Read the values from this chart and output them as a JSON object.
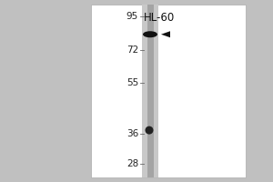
{
  "bg_color": "#f0f0f0",
  "white_bg": "#ffffff",
  "lane_color": "#c8c8c8",
  "lane_stripe_color": "#888888",
  "title": "HL-60",
  "title_fontsize": 8.5,
  "mw_labels": [
    "95",
    "72",
    "55",
    "36",
    "28"
  ],
  "mw_values": [
    95,
    72,
    55,
    36,
    28
  ],
  "mw_fontsize": 7.5,
  "band1_kda": 82,
  "band1_color": "#1a1a1a",
  "band2_kda": 37,
  "band2_color": "#2a2a2a",
  "arrow_color": "#111111",
  "outer_bg": "#c0c0c0",
  "fig_width": 3.0,
  "fig_height": 2.0,
  "dpi": 100
}
